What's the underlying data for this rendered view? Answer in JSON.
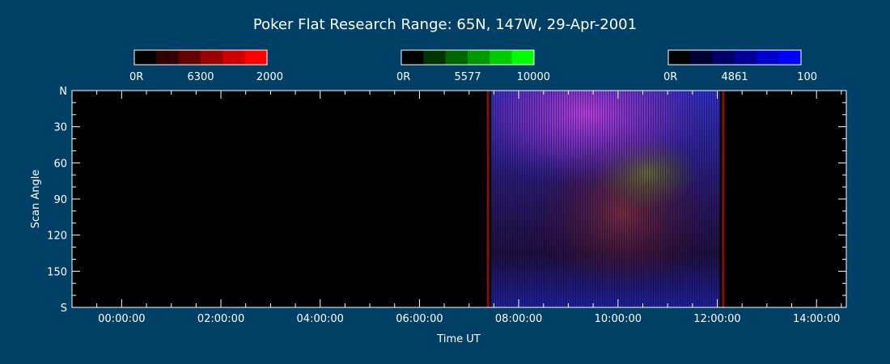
{
  "chart_data": {
    "type": "heatmap",
    "title": "Poker Flat Research Range: 65N, 147W, 29-Apr-2001",
    "xlabel": "Time UT",
    "ylabel": "Scan Angle",
    "x_ticks": [
      "00:00:00",
      "02:00:00",
      "04:00:00",
      "06:00:00",
      "08:00:00",
      "10:00:00",
      "12:00:00",
      "14:00:00"
    ],
    "x_tick_hours": [
      0,
      2,
      4,
      6,
      8,
      10,
      12,
      14
    ],
    "xlim_hours": [
      -1.0,
      14.6
    ],
    "y_ticks": [
      "N",
      "30",
      "60",
      "90",
      "120",
      "150",
      "S"
    ],
    "y_tick_values": [
      0,
      30,
      60,
      90,
      120,
      150,
      180
    ],
    "ylim": [
      0,
      180
    ],
    "grid": false,
    "colorbars": [
      {
        "name": "6300",
        "min_label": "0R",
        "max_label": "2000",
        "min": 0,
        "max": 2000,
        "colors": [
          "#000000",
          "#330000",
          "#660000",
          "#990000",
          "#cc0000",
          "#ff0000"
        ]
      },
      {
        "name": "5577",
        "min_label": "0R",
        "max_label": "10000",
        "min": 0,
        "max": 10000,
        "colors": [
          "#000000",
          "#003300",
          "#006600",
          "#009900",
          "#00cc00",
          "#00ff00"
        ]
      },
      {
        "name": "4861",
        "min_label": "0R",
        "max_label": "100",
        "min": 0,
        "max": 100,
        "colors": [
          "#000000",
          "#000033",
          "#000066",
          "#000099",
          "#0000cc",
          "#0000ff"
        ]
      }
    ],
    "data_coverage": {
      "start_hour": 7.45,
      "end_hour": 12.05
    },
    "red_edge_lines_hour": [
      7.38,
      12.12
    ],
    "colors": {
      "background": "#003f66",
      "plot_bg": "#000000",
      "axis": "#ffffff"
    }
  }
}
